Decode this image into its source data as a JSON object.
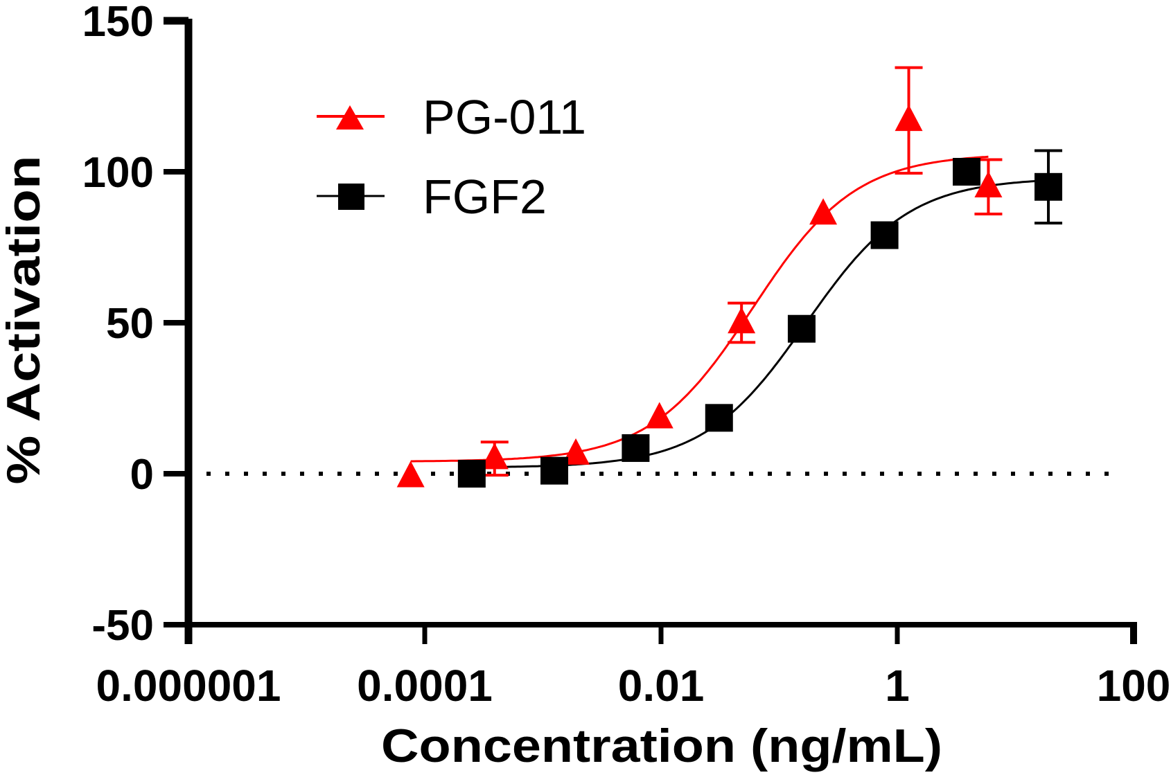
{
  "chart_data": {
    "type": "scatter",
    "title": "",
    "xlabel": "Concentration (ng/mL)",
    "ylabel": "% Activation",
    "xscale": "log",
    "xlim": [
      1e-06,
      100
    ],
    "ylim": [
      -50,
      150
    ],
    "x_ticks": [
      1e-06,
      0.0001,
      0.01,
      1,
      100
    ],
    "x_tick_labels": [
      "0.000001",
      "0.0001",
      "0.01",
      "1",
      "100"
    ],
    "y_ticks": [
      -50,
      0,
      50,
      100,
      150
    ],
    "y_tick_labels": [
      "-50",
      "0",
      "50",
      "100",
      "150"
    ],
    "reference_line": {
      "y": 0,
      "style": "dotted"
    },
    "grid": false,
    "legend": {
      "placement": "top-left"
    },
    "series": [
      {
        "name": "PG-011",
        "color": "#ff0000",
        "marker": "triangle",
        "x": [
          7.6e-05,
          0.00039,
          0.0019,
          0.0097,
          0.048,
          0.236,
          1.25,
          5.9
        ],
        "y": [
          -1,
          5,
          6.5,
          18.5,
          50,
          86,
          117,
          95
        ],
        "error": [
          0,
          5.5,
          0,
          0,
          6.5,
          0,
          17.5,
          9
        ],
        "fit": {
          "model": "4PL",
          "bottom": 4,
          "top": 106,
          "ec50": 0.06,
          "hill": 1.0
        }
      },
      {
        "name": "FGF2",
        "color": "#000000",
        "marker": "square",
        "x": [
          0.00025,
          0.00125,
          0.0061,
          0.031,
          0.155,
          0.78,
          3.86,
          19
        ],
        "y": [
          0,
          1,
          8.5,
          18.5,
          48,
          79,
          100,
          95
        ],
        "error": [
          0,
          0,
          0,
          0,
          0,
          0,
          0,
          12
        ],
        "fit": {
          "model": "4PL",
          "bottom": 2,
          "top": 98,
          "ec50": 0.17,
          "hill": 1.0
        }
      }
    ]
  }
}
